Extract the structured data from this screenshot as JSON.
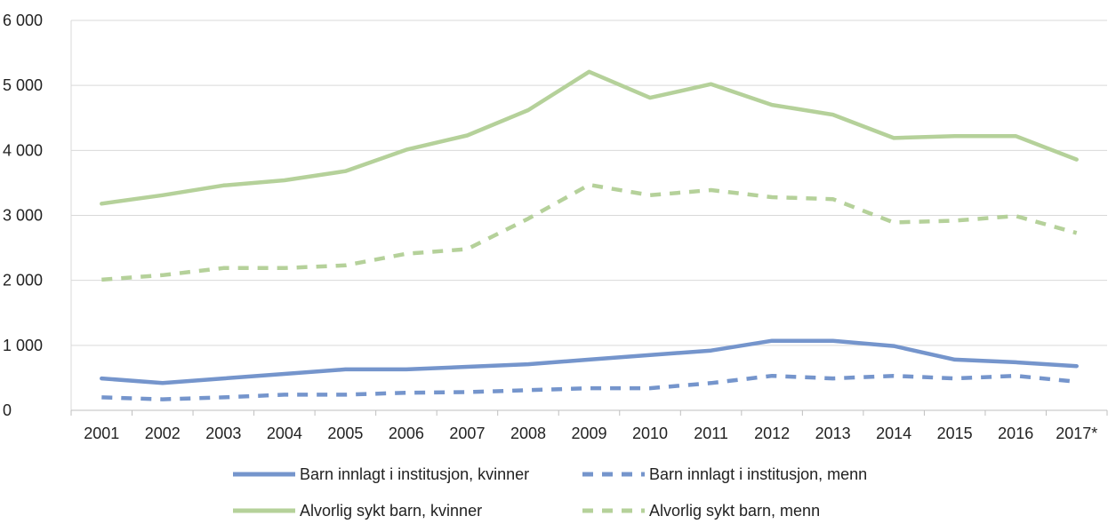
{
  "chart_data": {
    "type": "line",
    "title": "",
    "xlabel": "",
    "ylabel": "",
    "categories": [
      "2001",
      "2002",
      "2003",
      "2004",
      "2005",
      "2006",
      "2007",
      "2008",
      "2009",
      "2010",
      "2011",
      "2012",
      "2013",
      "2014",
      "2015",
      "2016",
      "2017*"
    ],
    "ylim": [
      0,
      6000
    ],
    "yticks": [
      0,
      1000,
      2000,
      3000,
      4000,
      5000,
      6000
    ],
    "ytick_labels": [
      "0",
      "1 000",
      "2 000",
      "3 000",
      "4 000",
      "5 000",
      "6 000"
    ],
    "grid": "horizontal",
    "legend_position": "bottom",
    "series": [
      {
        "name": "Barn innlagt i institusjon, kvinner",
        "color": "#7595cc",
        "style": "solid",
        "values": [
          490,
          420,
          490,
          560,
          630,
          630,
          670,
          710,
          780,
          850,
          920,
          1070,
          1070,
          990,
          780,
          740,
          680
        ]
      },
      {
        "name": "Barn innlagt i institusjon, menn",
        "color": "#7595cc",
        "style": "dashed",
        "values": [
          200,
          170,
          200,
          240,
          240,
          270,
          280,
          310,
          340,
          340,
          420,
          530,
          490,
          530,
          490,
          530,
          440
        ]
      },
      {
        "name": "Alvorlig sykt barn, kvinner",
        "color": "#b5d19a",
        "style": "solid",
        "values": [
          3180,
          3310,
          3460,
          3540,
          3680,
          4010,
          4230,
          4620,
          5210,
          4810,
          5020,
          4700,
          4550,
          4190,
          4220,
          4220,
          3860
        ]
      },
      {
        "name": "Alvorlig sykt barn, menn",
        "color": "#b5d19a",
        "style": "dashed",
        "values": [
          2010,
          2080,
          2190,
          2190,
          2230,
          2410,
          2480,
          2950,
          3470,
          3310,
          3390,
          3280,
          3250,
          2890,
          2920,
          2990,
          2730
        ]
      }
    ]
  }
}
